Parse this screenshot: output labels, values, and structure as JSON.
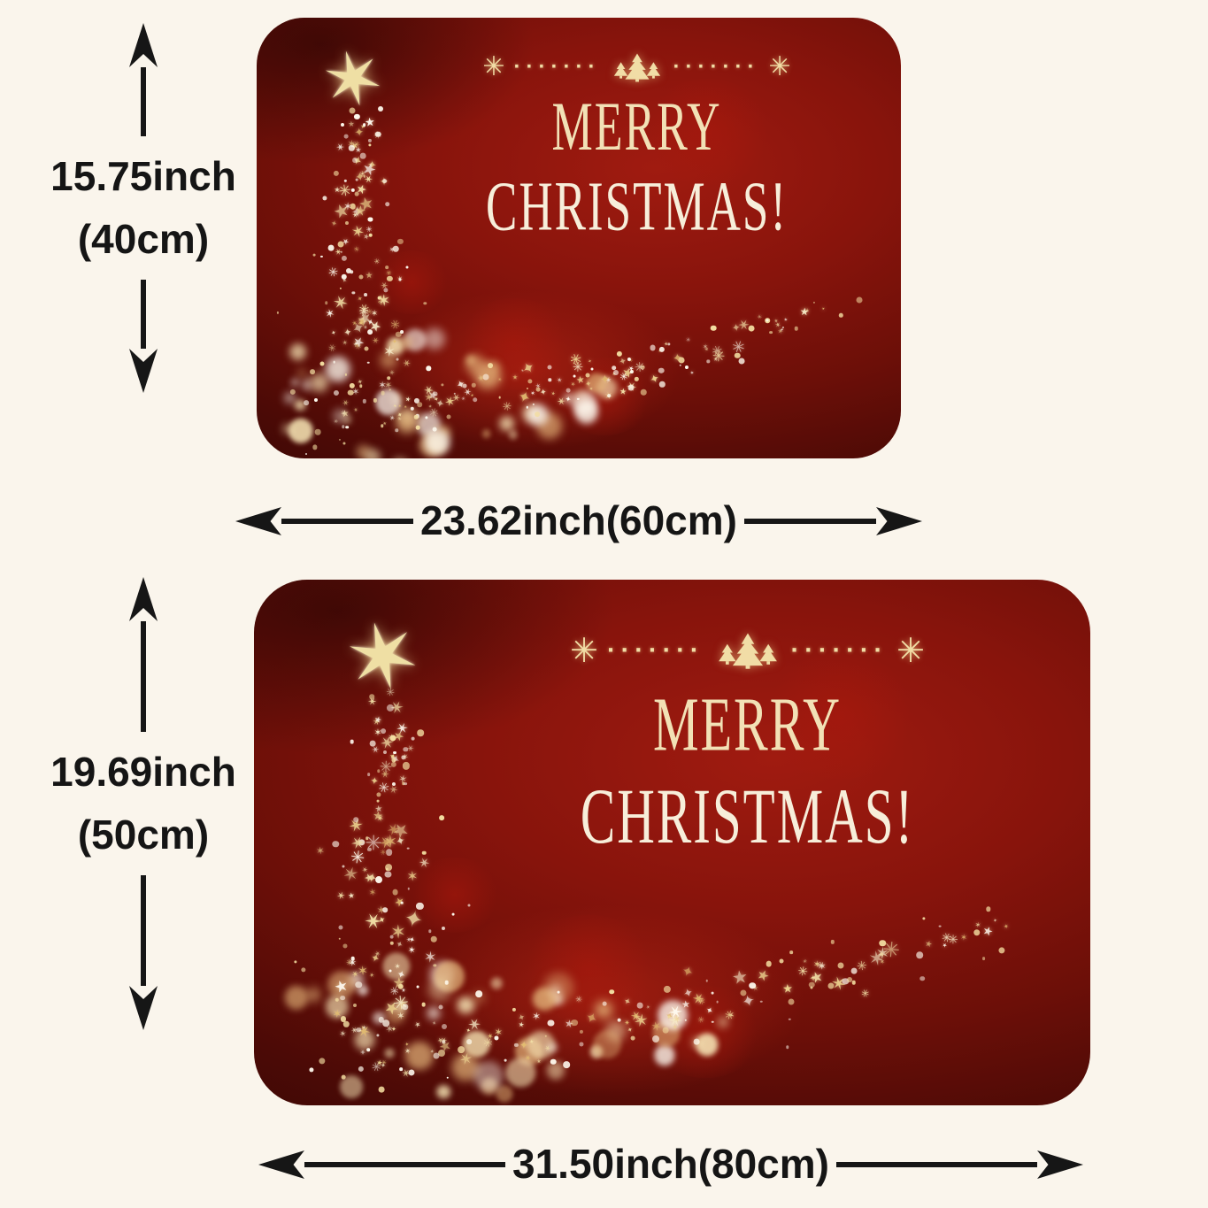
{
  "diagram": {
    "background_color": "#faf5ec",
    "arrow_color": "#161616",
    "mat_base_color": "#88140c",
    "gold_color": "#f1dda6",
    "ivory_text_color": "#f7eeda"
  },
  "icons": {
    "tree_top_star": "✶",
    "snowflake_asterisk": "✳",
    "dots": "·······"
  },
  "mats": [
    {
      "name": "small mat",
      "greeting": {
        "line1": "MERRY",
        "line2": "CHRISTMAS!"
      },
      "height_label": [
        "15.75inch",
        "(40cm)"
      ],
      "width_label": "23.62inch(60cm)"
    },
    {
      "name": "large mat",
      "greeting": {
        "line1": "MERRY",
        "line2": "CHRISTMAS!"
      },
      "height_label": [
        "19.69inch",
        "(50cm)"
      ],
      "width_label": "31.50inch(80cm)"
    }
  ]
}
